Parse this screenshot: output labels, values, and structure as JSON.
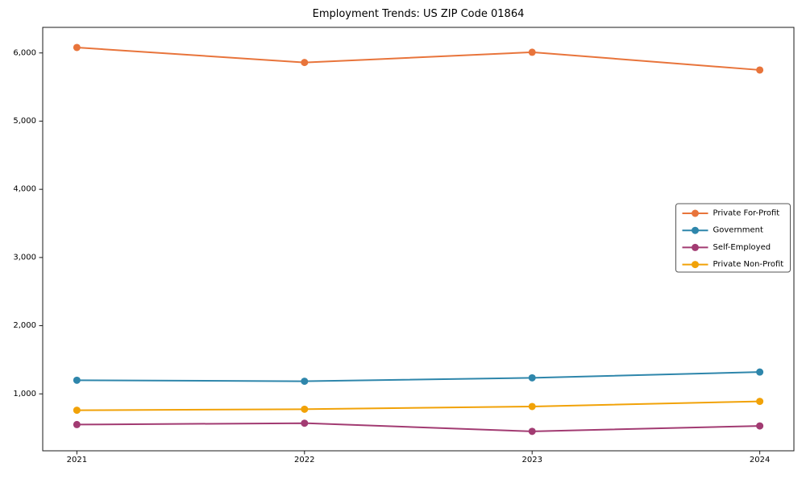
{
  "figure": {
    "background": "#ffffff",
    "spine_color": "#1a1a1a",
    "tick_color": "#1a1a1a",
    "legend_border_color": "#555555"
  },
  "chart_data": {
    "type": "line",
    "title": "Employment Trends: US ZIP Code 01864",
    "xlabel": "",
    "ylabel": "",
    "x": [
      2021,
      2022,
      2023,
      2024
    ],
    "x_tick_labels": [
      "2021",
      "2022",
      "2023",
      "2024"
    ],
    "series": [
      {
        "name": "Private For-Profit",
        "color": "#E8743B",
        "values": [
          6080,
          5860,
          6010,
          5750
        ]
      },
      {
        "name": "Government",
        "color": "#2E86AB",
        "values": [
          1200,
          1185,
          1235,
          1320
        ]
      },
      {
        "name": "Self-Employed",
        "color": "#A23B72",
        "values": [
          550,
          570,
          450,
          530
        ]
      },
      {
        "name": "Private Non-Profit",
        "color": "#F1A208",
        "values": [
          760,
          775,
          815,
          890
        ]
      }
    ],
    "yticks": [
      1000,
      2000,
      3000,
      4000,
      5000,
      6000
    ],
    "ytick_labels": [
      "1,000",
      "2,000",
      "3,000",
      "4,000",
      "5,000",
      "6,000"
    ],
    "xlim": [
      2020.85,
      2024.15
    ],
    "ylim": [
      165,
      6375
    ],
    "grid": false,
    "legend_position": "right-middle",
    "marker": "circle",
    "line_width": 2,
    "marker_radius": 4.5
  }
}
